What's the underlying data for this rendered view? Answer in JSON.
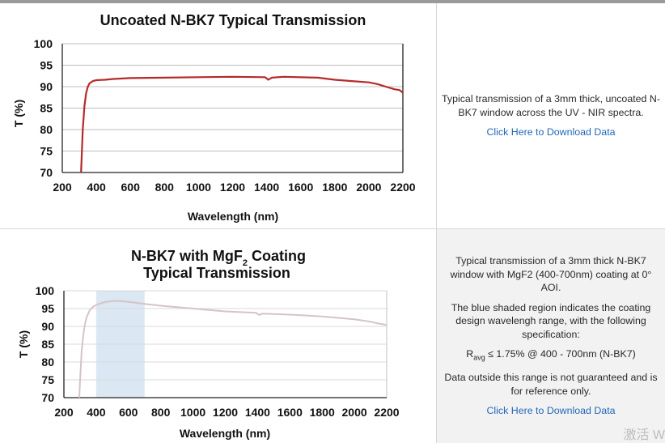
{
  "charts": [
    {
      "title_line1": "Uncoated N-BK7 Typical Transmission",
      "title_line2": "",
      "description": [
        "Typical transmission of a 3mm thick, uncoated N-BK7 window across the UV - NIR spectra."
      ],
      "spec": "",
      "note": "",
      "link_text": "Click Here to Download Data"
    },
    {
      "title_line1": "N-BK7 with MgF",
      "title_sub": "2",
      "title_line1_end": " Coating",
      "title_line2": "Typical Transmission",
      "description": [
        "Typical transmission of a 3mm thick N-BK7 window with MgF2 (400-700nm) coating at 0° AOI.",
        "The blue shaded region indicates the coating design wavelengh range, with the following specification:"
      ],
      "spec_R": "R",
      "spec_sub": "avg",
      "spec_rest": " ≤ 1.75% @ 400 - 700nm (N-BK7)",
      "note": "Data outside this range is not guaranteed and is for reference only.",
      "link_text": "Click Here to Download Data"
    }
  ],
  "watermark": "激活 W",
  "chart_data": [
    {
      "type": "line",
      "title": "Uncoated N-BK7 Typical Transmission",
      "xlabel": "Wavelength (nm)",
      "ylabel": "T (%)",
      "xlim": [
        200,
        2200
      ],
      "ylim": [
        70,
        100
      ],
      "xticks": [
        200,
        400,
        600,
        800,
        1000,
        1200,
        1400,
        1600,
        1800,
        2000,
        2200
      ],
      "yticks": [
        70,
        75,
        80,
        85,
        90,
        95,
        100
      ],
      "grid": "horizontal",
      "line_color": "#b52a2a",
      "series": [
        {
          "x": [
            310,
            320,
            330,
            340,
            350,
            360,
            380,
            400,
            450,
            500,
            600,
            800,
            1000,
            1200,
            1390,
            1410,
            1430,
            1500,
            1700,
            1800,
            1900,
            2000,
            2050,
            2100,
            2150,
            2180,
            2200
          ],
          "y": [
            70,
            80,
            85.5,
            88.5,
            90,
            90.8,
            91.3,
            91.5,
            91.6,
            91.8,
            92,
            92.1,
            92.2,
            92.3,
            92.2,
            91.6,
            92.1,
            92.3,
            92.1,
            91.6,
            91.3,
            91,
            90.6,
            90,
            89.4,
            89.2,
            88.6
          ]
        }
      ]
    },
    {
      "type": "line",
      "title": "N-BK7 with MgF2 Coating Typical Transmission",
      "xlabel": "Wavelength (nm)",
      "ylabel": "T (%)",
      "xlim": [
        200,
        2200
      ],
      "ylim": [
        70,
        100
      ],
      "xticks": [
        200,
        400,
        600,
        800,
        1000,
        1200,
        1400,
        1600,
        1800,
        2000,
        2200
      ],
      "yticks": [
        70,
        75,
        80,
        85,
        90,
        95,
        100
      ],
      "grid": "horizontal",
      "shaded_region": [
        400,
        700
      ],
      "shade_color": "#dbe7f3",
      "line_color": "#d5c3c8",
      "series": [
        {
          "x": [
            295,
            300,
            310,
            320,
            330,
            340,
            360,
            380,
            400,
            450,
            500,
            550,
            600,
            700,
            800,
            1000,
            1200,
            1390,
            1410,
            1430,
            1600,
            1800,
            2000,
            2100,
            2150,
            2200
          ],
          "y": [
            70,
            75,
            83,
            87.5,
            90.5,
            92.5,
            94.5,
            95.5,
            96,
            96.8,
            97.1,
            97.1,
            96.9,
            96.3,
            95.8,
            95,
            94.2,
            93.8,
            93.2,
            93.6,
            93.3,
            92.8,
            92,
            91.3,
            90.8,
            90.4
          ]
        }
      ]
    }
  ]
}
